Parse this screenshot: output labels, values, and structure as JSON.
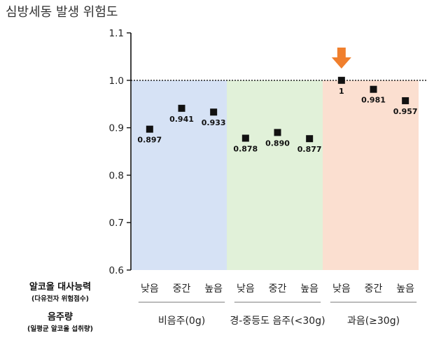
{
  "chart_data": {
    "type": "scatter",
    "title": "심방세동 발생 위험도",
    "ylim": [
      0.6,
      1.1
    ],
    "y_ticks": [
      "0.6",
      "0.7",
      "0.8",
      "0.9",
      "1.0",
      "1.1"
    ],
    "reference_line": 1.0,
    "categories": [
      "낮음",
      "중간",
      "높음",
      "낮음",
      "중간",
      "높음",
      "낮음",
      "중간",
      "높음"
    ],
    "values": [
      0.897,
      0.941,
      0.933,
      0.878,
      0.89,
      0.877,
      1.0,
      0.981,
      0.957
    ],
    "value_labels": [
      "0.897",
      "0.941",
      "0.933",
      "0.878",
      "0.890",
      "0.877",
      "1",
      "0.981",
      "0.957"
    ],
    "groups": [
      {
        "name": "비음주(0g)",
        "color": "#d6e2f5"
      },
      {
        "name": "경-중등도 음주(<30g)",
        "color": "#e1f1d9"
      },
      {
        "name": "과음(≥30g)",
        "color": "#fbdfd0"
      }
    ],
    "highlight_index": 6,
    "highlight_color": "#f07f2d",
    "row_labels": {
      "metabolism_main": "알코올 대사능력",
      "metabolism_sub": "(다유전자 위험점수)",
      "drinking_main": "음주량",
      "drinking_sub": "(일평균 알코올 섭취량)"
    }
  }
}
